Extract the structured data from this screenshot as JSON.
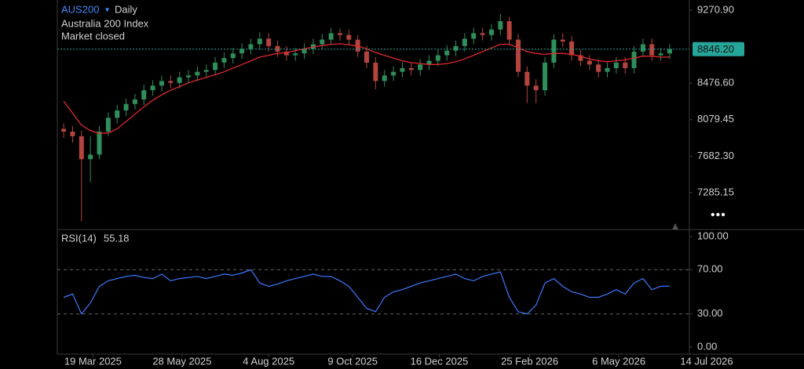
{
  "chart_data": [
    {
      "type": "candlestick",
      "symbol": "AUS200",
      "interval": "Daily",
      "name": "Australia 200 Index",
      "status": "Market closed",
      "x": [
        "2025-02-24",
        "2025-03-03",
        "2025-03-10",
        "2025-03-17",
        "2025-03-24",
        "2025-03-31",
        "2025-04-07",
        "2025-04-14",
        "2025-04-21",
        "2025-04-28",
        "2025-05-05",
        "2025-05-12",
        "2025-05-19",
        "2025-05-26",
        "2025-06-02",
        "2025-06-09",
        "2025-06-16",
        "2025-06-23",
        "2025-06-30",
        "2025-07-07",
        "2025-07-14",
        "2025-07-21",
        "2025-07-28",
        "2025-08-04",
        "2025-08-11",
        "2025-08-18",
        "2025-08-25",
        "2025-09-01",
        "2025-09-08",
        "2025-09-15",
        "2025-09-22",
        "2025-09-29",
        "2025-10-06",
        "2025-10-13",
        "2025-10-20",
        "2025-10-27",
        "2025-11-03",
        "2025-11-10",
        "2025-11-17",
        "2025-11-24",
        "2025-12-01",
        "2025-12-08",
        "2025-12-15",
        "2025-12-22",
        "2025-12-29",
        "2026-01-05",
        "2026-01-12",
        "2026-01-19",
        "2026-01-26",
        "2026-02-02",
        "2026-02-09",
        "2026-02-16",
        "2026-02-23",
        "2026-03-02",
        "2026-03-09",
        "2026-03-16",
        "2026-03-23",
        "2026-03-30",
        "2026-04-06",
        "2026-04-13",
        "2026-04-20",
        "2026-04-27",
        "2026-05-04",
        "2026-05-11",
        "2026-05-18",
        "2026-05-25",
        "2026-06-01",
        "2026-06-08",
        "2026-06-15"
      ],
      "open": [
        7980,
        7950,
        7900,
        7650,
        7700,
        7950,
        8100,
        8180,
        8250,
        8300,
        8400,
        8450,
        8500,
        8480,
        8540,
        8560,
        8600,
        8620,
        8700,
        8750,
        8800,
        8850,
        8900,
        8960,
        8880,
        8820,
        8780,
        8800,
        8850,
        8900,
        8950,
        9020,
        9000,
        8950,
        8820,
        8700,
        8500,
        8560,
        8600,
        8640,
        8620,
        8680,
        8720,
        8780,
        8830,
        8880,
        8960,
        9020,
        9000,
        9060,
        9150,
        8950,
        8600,
        8450,
        8400,
        8700,
        8950,
        8930,
        8780,
        8720,
        8680,
        8600,
        8640,
        8700,
        8640,
        8820,
        8900,
        8780,
        8800
      ],
      "high": [
        8040,
        8010,
        7960,
        7900,
        8010,
        8160,
        8240,
        8310,
        8360,
        8460,
        8510,
        8560,
        8560,
        8600,
        8620,
        8660,
        8680,
        8760,
        8810,
        8860,
        8910,
        8960,
        9030,
        9020,
        8940,
        8880,
        8860,
        8910,
        8960,
        9010,
        9080,
        9070,
        9060,
        9000,
        8880,
        8760,
        8620,
        8660,
        8700,
        8700,
        8740,
        8780,
        8840,
        8890,
        8940,
        9020,
        9080,
        9080,
        9120,
        9230,
        9200,
        9010,
        8660,
        8520,
        8760,
        9010,
        9020,
        8990,
        8840,
        8780,
        8740,
        8700,
        8760,
        8760,
        8880,
        8960,
        8960,
        8860,
        8900
      ],
      "low": [
        7880,
        7830,
        6975,
        7400,
        7650,
        7900,
        8040,
        8120,
        8190,
        8240,
        8340,
        8390,
        8420,
        8420,
        8480,
        8500,
        8540,
        8560,
        8640,
        8690,
        8740,
        8790,
        8840,
        8820,
        8760,
        8720,
        8720,
        8740,
        8790,
        8840,
        8890,
        8940,
        8890,
        8760,
        8640,
        8410,
        8440,
        8500,
        8540,
        8560,
        8560,
        8620,
        8660,
        8720,
        8770,
        8820,
        8900,
        8940,
        8940,
        9000,
        8890,
        8540,
        8260,
        8260,
        8340,
        8640,
        8870,
        8720,
        8660,
        8620,
        8540,
        8540,
        8580,
        8580,
        8580,
        8760,
        8720,
        8720,
        8740
      ],
      "close": [
        7950,
        7900,
        7650,
        7700,
        7950,
        8100,
        8180,
        8250,
        8300,
        8400,
        8450,
        8500,
        8480,
        8540,
        8560,
        8600,
        8620,
        8700,
        8750,
        8800,
        8850,
        8900,
        8960,
        8880,
        8820,
        8780,
        8800,
        8850,
        8900,
        8950,
        9020,
        9000,
        8950,
        8820,
        8700,
        8500,
        8560,
        8600,
        8640,
        8620,
        8680,
        8720,
        8780,
        8830,
        8880,
        8960,
        9020,
        9000,
        9060,
        9150,
        8950,
        8600,
        8450,
        8400,
        8700,
        8950,
        8930,
        8780,
        8720,
        8680,
        8600,
        8640,
        8700,
        8640,
        8820,
        8900,
        8780,
        8800,
        8846.2
      ],
      "up_color": "#2f8f5b",
      "down_color": "#b5443f",
      "overlay": {
        "color": "#e0282e",
        "values": [
          8280,
          8150,
          8020,
          7960,
          7930,
          7935,
          7980,
          8060,
          8140,
          8220,
          8290,
          8350,
          8400,
          8440,
          8480,
          8510,
          8540,
          8570,
          8600,
          8640,
          8680,
          8720,
          8760,
          8780,
          8800,
          8810,
          8830,
          8850,
          8870,
          8885,
          8900,
          8905,
          8895,
          8880,
          8850,
          8810,
          8780,
          8750,
          8720,
          8700,
          8690,
          8680,
          8680,
          8690,
          8710,
          8740,
          8780,
          8820,
          8860,
          8900,
          8900,
          8860,
          8820,
          8800,
          8790,
          8800,
          8800,
          8790,
          8770,
          8740,
          8720,
          8710,
          8720,
          8730,
          8750,
          8770,
          8770,
          8760,
          8760
        ]
      },
      "xlim": [
        "2025-02-19",
        "2026-07-14"
      ],
      "xticks": [
        {
          "value": "2025-03-19",
          "label": "19 Mar 2025"
        },
        {
          "value": "2025-05-28",
          "label": "28 May 2025"
        },
        {
          "value": "2025-08-04",
          "label": "4 Aug 2025"
        },
        {
          "value": "2025-10-09",
          "label": "9 Oct 2025"
        },
        {
          "value": "2025-12-16",
          "label": "16 Dec 2025"
        },
        {
          "value": "2026-02-25",
          "label": "25 Feb 2026"
        },
        {
          "value": "2026-05-06",
          "label": "6 May 2026"
        },
        {
          "value": "2026-07-14",
          "label": "14 Jul 2026"
        }
      ],
      "ylim": [
        6885,
        9381
      ],
      "yticks": [
        {
          "value": 9270.9,
          "label": "9270.90"
        },
        {
          "value": 8476.6,
          "label": "8476.60"
        },
        {
          "value": 8079.45,
          "label": "8079.45"
        },
        {
          "value": 7682.3,
          "label": "7682.30"
        },
        {
          "value": 7285.15,
          "label": "7285.15"
        }
      ],
      "last_price": {
        "value": 8846.2,
        "label": "8846.20"
      },
      "last_price_color": "#26a69a"
    },
    {
      "type": "line",
      "title": "RSI(14)",
      "color": "#3b7bff",
      "values": [
        45,
        48,
        30,
        40,
        55,
        60,
        62,
        64,
        65,
        63,
        62,
        66,
        60,
        62,
        63,
        64,
        62,
        64,
        66,
        65,
        67,
        70,
        58,
        55,
        57,
        60,
        62,
        64,
        66,
        64,
        64,
        60,
        55,
        45,
        35,
        32,
        45,
        50,
        52,
        55,
        58,
        60,
        62,
        64,
        66,
        62,
        60,
        64,
        66,
        68,
        45,
        32,
        30,
        38,
        58,
        62,
        55,
        50,
        48,
        45,
        45,
        48,
        52,
        48,
        58,
        62,
        52,
        55,
        55.18
      ],
      "ylim": [
        -6.4,
        106.4
      ],
      "yticks": [
        {
          "value": 100,
          "label": "100.00"
        },
        {
          "value": 70,
          "label": "70.00"
        },
        {
          "value": 30,
          "label": "30.00"
        },
        {
          "value": 0,
          "label": "0.00"
        }
      ],
      "levels": [
        30,
        70
      ]
    }
  ]
}
